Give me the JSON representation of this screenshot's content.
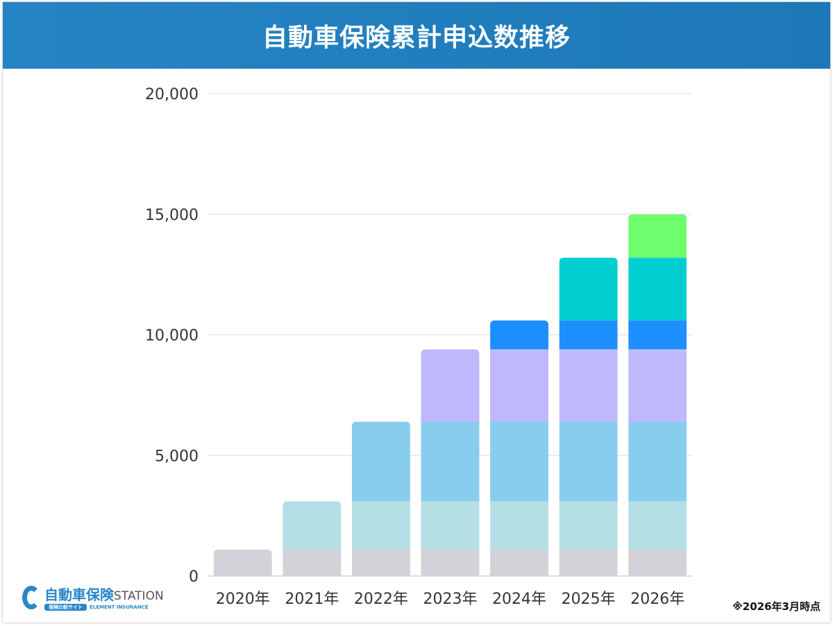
{
  "chart_data": {
    "type": "bar",
    "stacked": true,
    "title": "自動車保険累計申込数推移",
    "categories": [
      "2020年",
      "2021年",
      "2022年",
      "2023年",
      "2024年",
      "2025年",
      "2026年"
    ],
    "series": [
      {
        "color": "#d4d2d8",
        "values": [
          1100,
          1100,
          1100,
          1100,
          1100,
          1100,
          1100
        ]
      },
      {
        "color": "#b3dfe5",
        "values": [
          0,
          2000,
          2000,
          2000,
          2000,
          2000,
          2000
        ]
      },
      {
        "color": "#88cdee",
        "values": [
          0,
          0,
          3300,
          3300,
          3300,
          3300,
          3300
        ]
      },
      {
        "color": "#beb9fc",
        "values": [
          0,
          0,
          0,
          3000,
          3000,
          3000,
          3000
        ]
      },
      {
        "color": "#1e8fff",
        "values": [
          0,
          0,
          0,
          0,
          1200,
          1200,
          1200
        ]
      },
      {
        "color": "#00ced1",
        "values": [
          0,
          0,
          0,
          0,
          0,
          2600,
          2600
        ]
      },
      {
        "color": "#6dfd6d",
        "values": [
          0,
          0,
          0,
          0,
          0,
          0,
          1800
        ]
      }
    ],
    "yticks": [
      "0",
      "5,000",
      "10,000",
      "15,000",
      "20,000"
    ],
    "ylim": [
      0,
      20000
    ],
    "grid": true,
    "xlabel": "",
    "ylabel": ""
  },
  "logo": {
    "name": "自動車保険",
    "suffix": "STATION",
    "tag": "保険比較サイト",
    "sub": "ELEMENT INSURANCE"
  },
  "note": "※2026年3月時点"
}
